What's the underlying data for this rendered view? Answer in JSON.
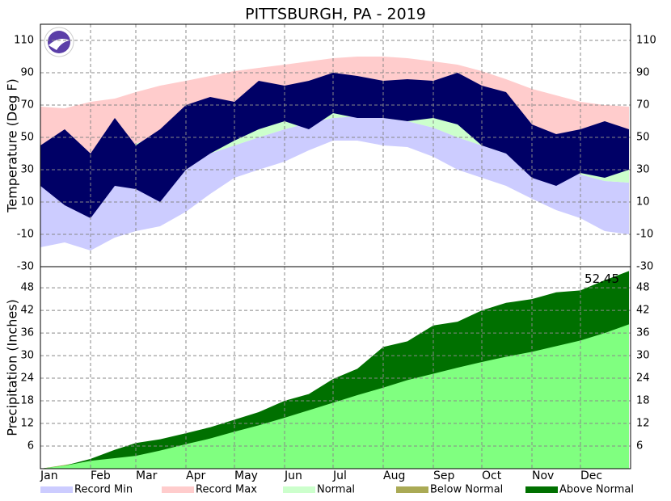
{
  "chart_data": [
    {
      "type": "band",
      "title": "PITTSBURGH, PA - 2019",
      "ylabel": "Temperature (Deg F)",
      "x": [
        0,
        15,
        31,
        46,
        59,
        74,
        90,
        105,
        120,
        135,
        151,
        166,
        181,
        196,
        212,
        227,
        243,
        258,
        273,
        288,
        304,
        319,
        334,
        349,
        364
      ],
      "xlim": [
        0,
        365
      ],
      "ylim": [
        -30,
        120
      ],
      "yticks": [
        -30,
        -10,
        10,
        30,
        50,
        70,
        90,
        110
      ],
      "grid": true,
      "series": [
        {
          "name": "Record Min",
          "color": "#ccccff",
          "values": [
            -18,
            -15,
            -20,
            -12,
            -8,
            -5,
            4,
            15,
            25,
            30,
            35,
            42,
            48,
            48,
            45,
            44,
            38,
            30,
            25,
            20,
            12,
            5,
            0,
            -8,
            -10
          ]
        },
        {
          "name": "Record Max",
          "color": "#ffcccc",
          "values": [
            69,
            68,
            72,
            74,
            78,
            82,
            85,
            88,
            91,
            93,
            95,
            97,
            99,
            100,
            100,
            99,
            97,
            95,
            91,
            86,
            80,
            76,
            72,
            70,
            69
          ]
        },
        {
          "name": "Normal",
          "color": "#ccffcc",
          "low": [
            21,
            20,
            21,
            23,
            26,
            30,
            35,
            40,
            45,
            50,
            55,
            59,
            62,
            63,
            62,
            60,
            56,
            50,
            45,
            40,
            35,
            31,
            27,
            23,
            22
          ],
          "high": [
            36,
            36,
            38,
            42,
            46,
            52,
            58,
            64,
            69,
            74,
            78,
            82,
            84,
            84,
            83,
            81,
            77,
            72,
            66,
            60,
            54,
            48,
            43,
            39,
            37
          ]
        },
        {
          "color": "#000066",
          "low": [
            20,
            8,
            0,
            20,
            18,
            10,
            30,
            40,
            48,
            55,
            60,
            55,
            65,
            62,
            62,
            60,
            62,
            58,
            45,
            40,
            25,
            20,
            28,
            25,
            30
          ],
          "high": [
            45,
            55,
            40,
            62,
            45,
            55,
            70,
            75,
            72,
            85,
            82,
            85,
            90,
            88,
            85,
            86,
            85,
            90,
            82,
            78,
            58,
            52,
            55,
            60,
            55
          ]
        }
      ]
    },
    {
      "type": "cumulative",
      "ylabel": "Precipitation (Inches)",
      "x": [
        0,
        15,
        31,
        46,
        59,
        74,
        90,
        105,
        120,
        135,
        151,
        166,
        181,
        196,
        212,
        227,
        243,
        258,
        273,
        288,
        304,
        319,
        334,
        349,
        364
      ],
      "xlim": [
        0,
        365
      ],
      "ylim": [
        0,
        53.6
      ],
      "yticks": [
        6,
        12,
        18,
        24,
        30,
        36,
        42,
        48
      ],
      "grid": true,
      "xticks": [
        {
          "value": 0,
          "label": "Jan"
        },
        {
          "value": 31,
          "label": "Feb"
        },
        {
          "value": 59,
          "label": "Mar"
        },
        {
          "value": 90,
          "label": "Apr"
        },
        {
          "value": 120,
          "label": "May"
        },
        {
          "value": 151,
          "label": "Jun"
        },
        {
          "value": 181,
          "label": "Jul"
        },
        {
          "value": 212,
          "label": "Aug"
        },
        {
          "value": 243,
          "label": "Sep"
        },
        {
          "value": 273,
          "label": "Oct"
        },
        {
          "value": 304,
          "label": "Nov"
        },
        {
          "value": 334,
          "label": "Dec"
        }
      ],
      "series": [
        {
          "color": "#80ff80",
          "values": [
            0,
            1,
            2.1,
            2.8,
            3.4,
            4.8,
            6.5,
            8,
            9.8,
            11.5,
            13.5,
            15.5,
            17.5,
            19.5,
            21.5,
            23.5,
            25.2,
            26.8,
            28.3,
            29.7,
            31,
            32.5,
            34,
            36,
            38.3
          ]
        },
        {
          "values": [
            0,
            0.8,
            2.6,
            5,
            6.8,
            7.8,
            9.4,
            11,
            13,
            15,
            18,
            19.8,
            23.8,
            26.5,
            32.3,
            33.8,
            38,
            39,
            42,
            44,
            45,
            46.8,
            47.3,
            50,
            52.45
          ]
        }
      ],
      "fills": [
        {
          "name": "Below Normal",
          "color": "#aaaa55"
        },
        {
          "name": "Above Normal",
          "color": "#007000"
        }
      ],
      "total": 52.45
    }
  ]
}
